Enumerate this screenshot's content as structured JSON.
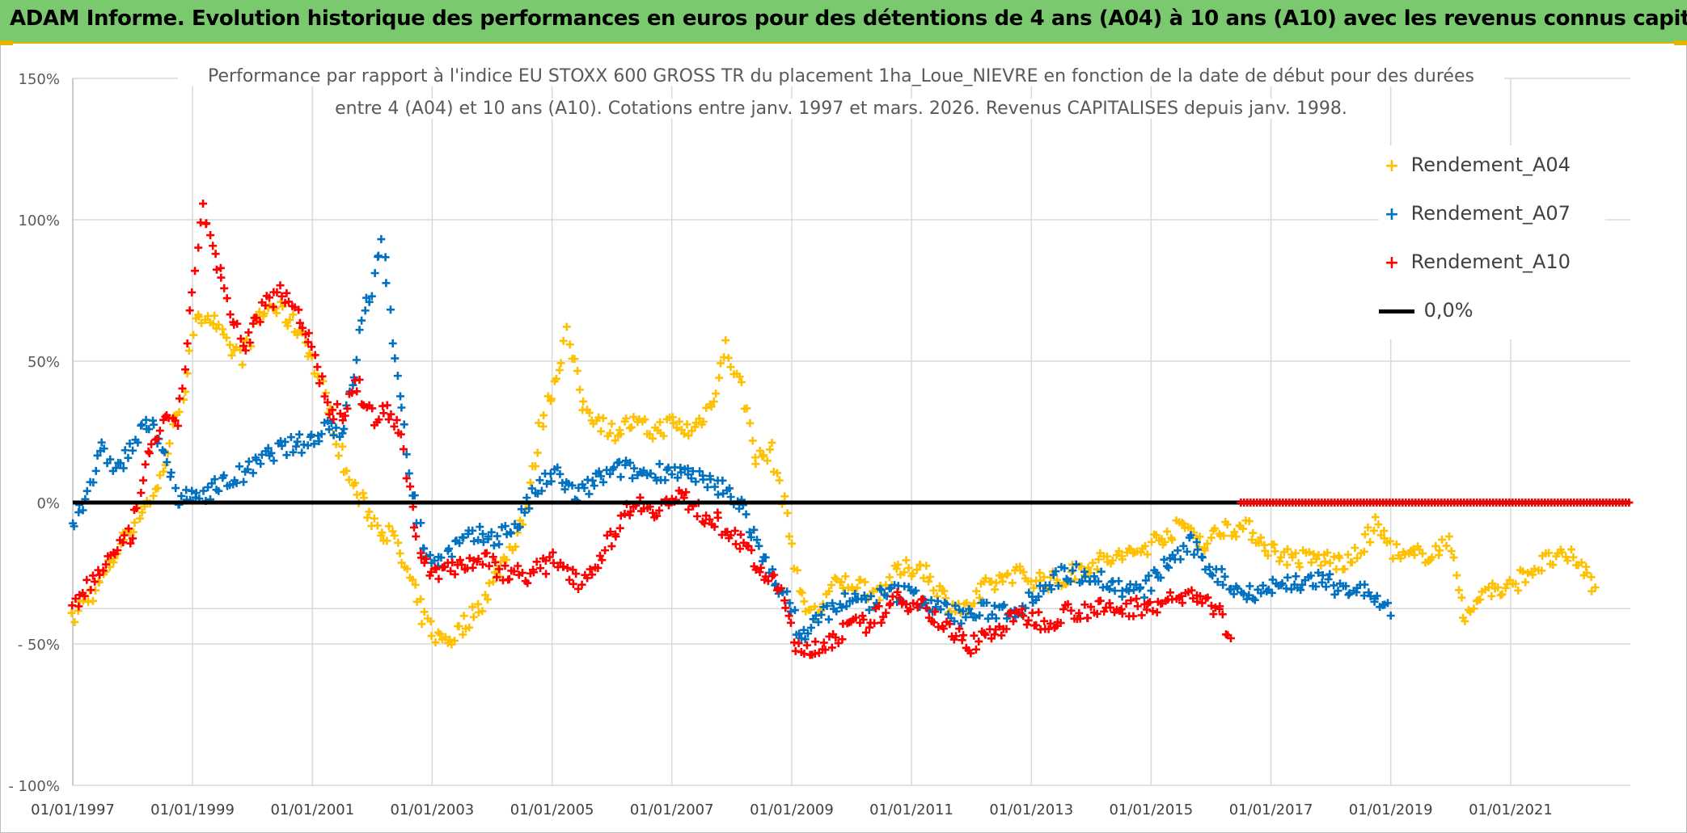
{
  "header": {
    "title": "ADAM Informe. Evolution historique des performances en euros pour des détentions de 4 ans (A04) à 10 ans (A10) avec les revenus connus capitalisés"
  },
  "chart_data": {
    "type": "scatter",
    "title_lines": [
      "Performance par rapport à l'indice EU STOXX 600 GROSS TR  du placement 1ha_Loue_NIEVRE en fonction de la date de début pour des durées",
      "entre 4 (A04) et 10 ans (A10). Cotations entre janv. 1997 et mars. 2026. Revenus CAPITALISES depuis janv. 1998."
    ],
    "y_ticks": [
      "150%",
      "100%",
      "50%",
      "0%",
      "- 50%",
      "- 100%"
    ],
    "y_tick_values": [
      150,
      100,
      50,
      0,
      -50,
      -100
    ],
    "ylim": [
      -100,
      150
    ],
    "x_ticks": [
      "01/01/1997",
      "01/01/1999",
      "01/01/2001",
      "01/01/2003",
      "01/01/2005",
      "01/01/2007",
      "01/01/2009",
      "01/01/2011",
      "01/01/2013",
      "01/01/2015",
      "01/01/2017",
      "01/01/2019",
      "01/01/2021"
    ],
    "xlim": [
      "1997-01-01",
      "2023-01-01"
    ],
    "grid": true,
    "legend_position": "top-right",
    "reference_line": {
      "name": "0,0%",
      "value": 0,
      "color": "#000000"
    },
    "series": [
      {
        "name": "Rendement_A04",
        "color": "#ffc000",
        "points": [
          [
            "1997-01-01",
            -42
          ],
          [
            "1997-03-01",
            -35
          ],
          [
            "1997-06-01",
            -30
          ],
          [
            "1997-09-01",
            -20
          ],
          [
            "1997-12-01",
            -10
          ],
          [
            "1998-03-01",
            -2
          ],
          [
            "1998-06-01",
            5
          ],
          [
            "1998-09-01",
            25
          ],
          [
            "1998-12-01",
            45
          ],
          [
            "1999-02-01",
            68
          ],
          [
            "1999-05-01",
            65
          ],
          [
            "1999-08-01",
            55
          ],
          [
            "1999-11-01",
            52
          ],
          [
            "2000-02-01",
            65
          ],
          [
            "2000-05-01",
            70
          ],
          [
            "2000-08-01",
            65
          ],
          [
            "2000-11-01",
            60
          ],
          [
            "2001-02-01",
            45
          ],
          [
            "2001-05-01",
            30
          ],
          [
            "2001-08-01",
            10
          ],
          [
            "2001-11-01",
            0
          ],
          [
            "2002-02-01",
            -8
          ],
          [
            "2002-05-01",
            -12
          ],
          [
            "2002-08-01",
            -25
          ],
          [
            "2002-11-01",
            -40
          ],
          [
            "2003-02-01",
            -48
          ],
          [
            "2003-05-01",
            -48
          ],
          [
            "2003-08-01",
            -42
          ],
          [
            "2003-11-01",
            -35
          ],
          [
            "2004-02-01",
            -25
          ],
          [
            "2004-05-01",
            -15
          ],
          [
            "2004-08-01",
            0
          ],
          [
            "2004-11-01",
            30
          ],
          [
            "2005-02-01",
            45
          ],
          [
            "2005-04-01",
            60
          ],
          [
            "2005-07-01",
            35
          ],
          [
            "2005-10-01",
            30
          ],
          [
            "2006-01-01",
            25
          ],
          [
            "2006-05-01",
            28
          ],
          [
            "2006-09-01",
            25
          ],
          [
            "2007-01-01",
            28
          ],
          [
            "2007-05-01",
            25
          ],
          [
            "2007-09-01",
            35
          ],
          [
            "2007-12-01",
            55
          ],
          [
            "2008-03-01",
            40
          ],
          [
            "2008-06-01",
            15
          ],
          [
            "2008-09-01",
            18
          ],
          [
            "2008-12-01",
            -5
          ],
          [
            "2009-03-01",
            -35
          ],
          [
            "2009-06-01",
            -40
          ],
          [
            "2009-09-01",
            -30
          ],
          [
            "2010-01-01",
            -28
          ],
          [
            "2010-06-01",
            -32
          ],
          [
            "2010-10-01",
            -25
          ],
          [
            "2011-03-01",
            -22
          ],
          [
            "2011-08-01",
            -35
          ],
          [
            "2011-12-01",
            -38
          ],
          [
            "2012-04-01",
            -30
          ],
          [
            "2012-09-01",
            -25
          ],
          [
            "2013-02-01",
            -27
          ],
          [
            "2013-07-01",
            -28
          ],
          [
            "2013-12-01",
            -22
          ],
          [
            "2014-05-01",
            -20
          ],
          [
            "2014-10-01",
            -18
          ],
          [
            "2015-03-01",
            -12
          ],
          [
            "2015-08-01",
            -8
          ],
          [
            "2015-12-01",
            -15
          ],
          [
            "2016-04-01",
            -8
          ],
          [
            "2016-09-01",
            -10
          ],
          [
            "2017-02-01",
            -18
          ],
          [
            "2017-07-01",
            -20
          ],
          [
            "2017-12-01",
            -20
          ],
          [
            "2018-05-01",
            -22
          ],
          [
            "2018-10-01",
            -8
          ],
          [
            "2019-03-01",
            -20
          ],
          [
            "2019-08-01",
            -18
          ],
          [
            "2020-01-01",
            -15
          ],
          [
            "2020-04-01",
            -42
          ],
          [
            "2020-08-01",
            -30
          ],
          [
            "2020-12-01",
            -32
          ],
          [
            "2021-04-01",
            -25
          ],
          [
            "2021-09-01",
            -20
          ],
          [
            "2022-02-01",
            -20
          ],
          [
            "2022-06-01",
            -30
          ]
        ]
      },
      {
        "name": "Rendement_A07",
        "color": "#0070c0",
        "points": [
          [
            "1997-01-01",
            -8
          ],
          [
            "1997-04-01",
            5
          ],
          [
            "1997-07-01",
            18
          ],
          [
            "1997-10-01",
            12
          ],
          [
            "1998-01-01",
            20
          ],
          [
            "1998-04-01",
            28
          ],
          [
            "1998-07-01",
            22
          ],
          [
            "1998-10-01",
            0
          ],
          [
            "1999-01-01",
            2
          ],
          [
            "1999-05-01",
            5
          ],
          [
            "1999-09-01",
            8
          ],
          [
            "2000-01-01",
            12
          ],
          [
            "2000-05-01",
            18
          ],
          [
            "2000-09-01",
            20
          ],
          [
            "2001-01-01",
            22
          ],
          [
            "2001-04-01",
            28
          ],
          [
            "2001-07-01",
            25
          ],
          [
            "2001-09-01",
            40
          ],
          [
            "2001-11-01",
            65
          ],
          [
            "2002-01-01",
            75
          ],
          [
            "2002-03-01",
            95
          ],
          [
            "2002-05-01",
            55
          ],
          [
            "2002-07-01",
            35
          ],
          [
            "2002-09-01",
            5
          ],
          [
            "2002-11-01",
            -15
          ],
          [
            "2003-02-01",
            -22
          ],
          [
            "2003-06-01",
            -15
          ],
          [
            "2003-10-01",
            -12
          ],
          [
            "2004-02-01",
            -12
          ],
          [
            "2004-06-01",
            -8
          ],
          [
            "2004-10-01",
            5
          ],
          [
            "2005-02-01",
            10
          ],
          [
            "2005-06-01",
            2
          ],
          [
            "2005-10-01",
            8
          ],
          [
            "2006-03-01",
            12
          ],
          [
            "2006-08-01",
            10
          ],
          [
            "2007-01-01",
            12
          ],
          [
            "2007-06-01",
            8
          ],
          [
            "2007-11-01",
            5
          ],
          [
            "2008-03-01",
            0
          ],
          [
            "2008-07-01",
            -20
          ],
          [
            "2008-11-01",
            -30
          ],
          [
            "2009-03-01",
            -48
          ],
          [
            "2009-07-01",
            -40
          ],
          [
            "2009-11-01",
            -35
          ],
          [
            "2010-04-01",
            -35
          ],
          [
            "2010-09-01",
            -32
          ],
          [
            "2011-02-01",
            -33
          ],
          [
            "2011-07-01",
            -38
          ],
          [
            "2011-12-01",
            -40
          ],
          [
            "2012-05-01",
            -38
          ],
          [
            "2012-10-01",
            -38
          ],
          [
            "2013-03-01",
            -30
          ],
          [
            "2013-08-01",
            -25
          ],
          [
            "2014-01-01",
            -25
          ],
          [
            "2014-06-01",
            -30
          ],
          [
            "2014-11-01",
            -32
          ],
          [
            "2015-04-01",
            -22
          ],
          [
            "2015-09-01",
            -15
          ],
          [
            "2016-02-01",
            -25
          ],
          [
            "2016-07-01",
            -32
          ],
          [
            "2017-01-01",
            -30
          ],
          [
            "2017-06-01",
            -28
          ],
          [
            "2017-11-01",
            -28
          ],
          [
            "2018-04-01",
            -30
          ],
          [
            "2018-09-01",
            -32
          ],
          [
            "2019-01-01",
            -40
          ]
        ]
      },
      {
        "name": "Rendement_A10",
        "color": "#ff0000",
        "points": [
          [
            "1997-01-01",
            -37
          ],
          [
            "1997-04-01",
            -30
          ],
          [
            "1997-07-01",
            -22
          ],
          [
            "1997-10-01",
            -18
          ],
          [
            "1998-01-01",
            -10
          ],
          [
            "1998-04-01",
            15
          ],
          [
            "1998-07-01",
            30
          ],
          [
            "1998-10-01",
            25
          ],
          [
            "1999-01-01",
            75
          ],
          [
            "1999-03-01",
            105
          ],
          [
            "1999-05-01",
            90
          ],
          [
            "1999-08-01",
            70
          ],
          [
            "1999-11-01",
            55
          ],
          [
            "2000-03-01",
            68
          ],
          [
            "2000-06-01",
            75
          ],
          [
            "2000-09-01",
            72
          ],
          [
            "2001-01-01",
            55
          ],
          [
            "2001-04-01",
            35
          ],
          [
            "2001-07-01",
            30
          ],
          [
            "2001-10-01",
            42
          ],
          [
            "2002-01-01",
            30
          ],
          [
            "2002-04-01",
            32
          ],
          [
            "2002-07-01",
            25
          ],
          [
            "2002-10-01",
            -15
          ],
          [
            "2003-01-01",
            -25
          ],
          [
            "2003-06-01",
            -22
          ],
          [
            "2003-11-01",
            -20
          ],
          [
            "2004-04-01",
            -25
          ],
          [
            "2004-09-01",
            -25
          ],
          [
            "2005-02-01",
            -20
          ],
          [
            "2005-07-01",
            -28
          ],
          [
            "2005-12-01",
            -15
          ],
          [
            "2006-05-01",
            0
          ],
          [
            "2006-10-01",
            -2
          ],
          [
            "2007-03-01",
            2
          ],
          [
            "2007-08-01",
            -5
          ],
          [
            "2008-01-01",
            -10
          ],
          [
            "2008-06-01",
            -22
          ],
          [
            "2008-11-01",
            -32
          ],
          [
            "2009-03-01",
            -55
          ],
          [
            "2009-07-01",
            -50
          ],
          [
            "2009-12-01",
            -45
          ],
          [
            "2010-05-01",
            -42
          ],
          [
            "2010-10-01",
            -35
          ],
          [
            "2011-03-01",
            -35
          ],
          [
            "2011-08-01",
            -45
          ],
          [
            "2012-01-01",
            -50
          ],
          [
            "2012-06-01",
            -45
          ],
          [
            "2012-11-01",
            -40
          ],
          [
            "2013-04-01",
            -42
          ],
          [
            "2013-09-01",
            -38
          ],
          [
            "2014-02-01",
            -38
          ],
          [
            "2014-07-01",
            -38
          ],
          [
            "2014-12-01",
            -36
          ],
          [
            "2015-05-01",
            -35
          ],
          [
            "2015-10-01",
            -32
          ],
          [
            "2016-03-01",
            -40
          ],
          [
            "2016-05-01",
            -48
          ]
        ],
        "zero_segment": [
          "2016-07-01",
          "2022-12-31"
        ]
      }
    ]
  }
}
